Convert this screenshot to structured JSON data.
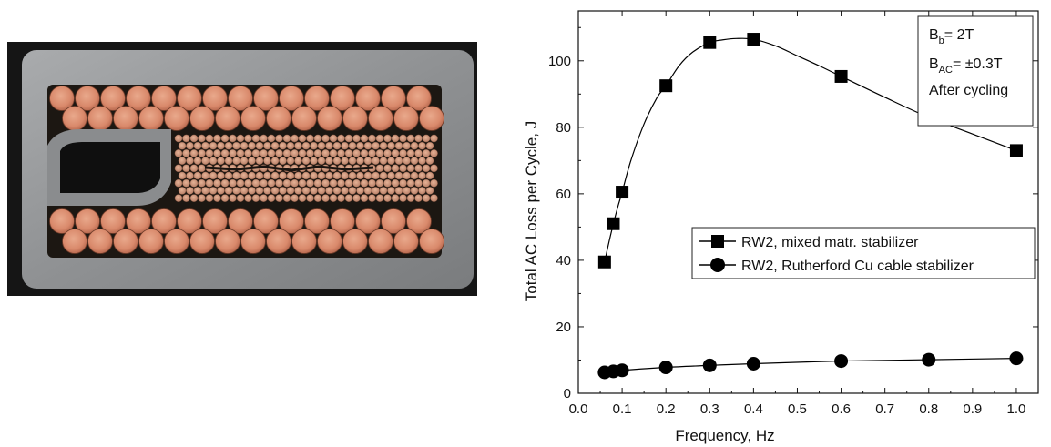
{
  "photo": {
    "description_icon": "conductor-cross-section-photo"
  },
  "chart_data": {
    "type": "line",
    "xlabel": "Frequency, Hz",
    "ylabel": "Total AC Loss per Cycle,  J",
    "xlim": [
      0.0,
      1.05
    ],
    "ylim": [
      0,
      115
    ],
    "xticks": [
      0.0,
      0.1,
      0.2,
      0.3,
      0.4,
      0.5,
      0.6,
      0.7,
      0.8,
      0.9,
      1.0
    ],
    "xtick_labels": [
      "0.0",
      "0.1",
      "0.2",
      "0.3",
      "0.4",
      "0.5",
      "0.6",
      "0.7",
      "0.8",
      "0.9",
      "1.0"
    ],
    "yticks": [
      0,
      20,
      40,
      60,
      80,
      100
    ],
    "ytick_labels": [
      "0",
      "20",
      "40",
      "60",
      "80",
      "100"
    ],
    "grid": false,
    "legend_position": "center-right",
    "annotation": {
      "line1_main": "B",
      "line1_sub": "b",
      "line1_rest": "= 2T",
      "line2_main": "B",
      "line2_sub": "AC",
      "line2_rest": "= ±0.3T",
      "line3": "After cycling"
    },
    "series": [
      {
        "name": "RW2, mixed matr. stabilizer",
        "marker": "square",
        "color": "#000000",
        "x": [
          0.06,
          0.08,
          0.1,
          0.2,
          0.3,
          0.4,
          0.6,
          0.8,
          1.0
        ],
        "y": [
          39.5,
          51,
          60.5,
          92.5,
          105.5,
          106.5,
          95.3,
          83,
          73
        ],
        "curve_x": [
          0.06,
          0.07,
          0.08,
          0.09,
          0.1,
          0.12,
          0.15,
          0.18,
          0.2,
          0.23,
          0.26,
          0.3,
          0.33,
          0.36,
          0.4,
          0.45,
          0.5,
          0.55,
          0.6,
          0.7,
          0.8,
          0.9,
          1.0
        ],
        "curve_y": [
          39.5,
          45.5,
          51,
          56,
          60.5,
          70,
          81,
          89,
          92.5,
          98.5,
          102.5,
          105.5,
          106.3,
          106.7,
          106.5,
          104.5,
          101.5,
          98.5,
          95.3,
          89,
          83,
          78,
          73
        ]
      },
      {
        "name": "RW2, Rutherford Cu cable stabilizer",
        "marker": "circle",
        "color": "#000000",
        "x": [
          0.06,
          0.08,
          0.1,
          0.2,
          0.3,
          0.4,
          0.6,
          0.8,
          1.0
        ],
        "y": [
          6.3,
          6.6,
          6.9,
          7.8,
          8.4,
          8.9,
          9.7,
          10.1,
          10.5
        ],
        "curve_x": [
          0.06,
          0.08,
          0.1,
          0.2,
          0.3,
          0.4,
          0.6,
          0.8,
          1.0
        ],
        "curve_y": [
          6.3,
          6.6,
          6.9,
          7.8,
          8.4,
          8.9,
          9.7,
          10.1,
          10.5
        ]
      }
    ]
  }
}
